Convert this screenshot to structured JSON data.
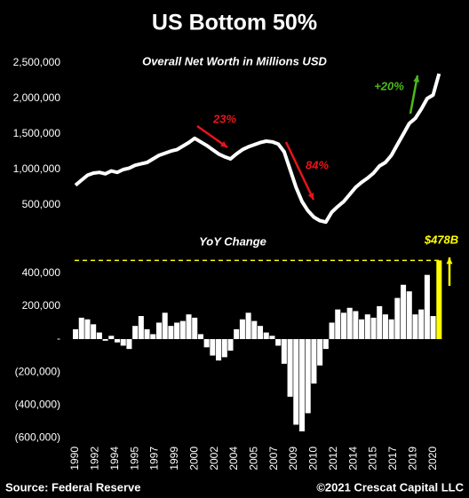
{
  "title": "US Bottom 50%",
  "source": "Source: Federal Reserve",
  "copyright": "©2021 Crescat Capital LLC",
  "chart_data": [
    {
      "type": "line",
      "title": "Overall Net Worth in Millions USD",
      "color": "#ffffff",
      "x": [
        1990,
        1990.5,
        1991,
        1991.5,
        1992,
        1992.5,
        1993,
        1993.5,
        1994,
        1994.5,
        1995,
        1995.5,
        1996,
        1996.5,
        1997,
        1997.5,
        1998,
        1998.5,
        1999,
        1999.5,
        2000,
        2000.5,
        2001,
        2001.5,
        2002,
        2002.5,
        2003,
        2003.5,
        2004,
        2004.5,
        2005,
        2005.5,
        2006,
        2006.5,
        2007,
        2007.5,
        2008,
        2008.5,
        2009,
        2009.5,
        2010,
        2010.5,
        2011,
        2011.5,
        2012,
        2012.5,
        2013,
        2013.5,
        2014,
        2014.5,
        2015,
        2015.5,
        2016,
        2016.5,
        2017,
        2017.5,
        2018,
        2018.5,
        2019,
        2019.5,
        2020,
        2020.5
      ],
      "values": [
        780000,
        850000,
        920000,
        950000,
        960000,
        940000,
        980000,
        960000,
        1000000,
        1020000,
        1060000,
        1080000,
        1100000,
        1150000,
        1200000,
        1230000,
        1260000,
        1280000,
        1330000,
        1380000,
        1440000,
        1390000,
        1340000,
        1280000,
        1220000,
        1180000,
        1150000,
        1220000,
        1280000,
        1320000,
        1350000,
        1380000,
        1400000,
        1390000,
        1360000,
        1250000,
        1000000,
        750000,
        550000,
        420000,
        330000,
        280000,
        260000,
        400000,
        480000,
        550000,
        650000,
        750000,
        820000,
        880000,
        950000,
        1050000,
        1100000,
        1200000,
        1350000,
        1500000,
        1650000,
        1720000,
        1850000,
        2000000,
        2050000,
        2350000
      ],
      "xlim": [
        1989.55,
        2020.7
      ],
      "ylim": [
        200000,
        2600000
      ],
      "yticks": [
        {
          "value": 500000,
          "label": "500,000"
        },
        {
          "value": 1000000,
          "label": "1,000,000"
        },
        {
          "value": 1500000,
          "label": "1,500,000"
        },
        {
          "value": 2000000,
          "label": "2,000,000"
        },
        {
          "value": 2500000,
          "label": "2,500,000"
        }
      ],
      "annotations": [
        {
          "text": "23%",
          "color": "#e8141b"
        },
        {
          "text": "84%",
          "color": "#e8141b"
        },
        {
          "text": "+20%",
          "color": "#4cbb17"
        }
      ]
    },
    {
      "type": "bar",
      "title": "YoY Change",
      "color": "#ffffff",
      "highlight_color": "#ffff00",
      "x": [
        1990,
        1990.5,
        1991,
        1991.5,
        1992,
        1992.5,
        1993,
        1993.5,
        1994,
        1994.5,
        1995,
        1995.5,
        1996,
        1996.5,
        1997,
        1997.5,
        1998,
        1998.5,
        1999,
        1999.5,
        2000,
        2000.5,
        2001,
        2001.5,
        2002,
        2002.5,
        2003,
        2003.5,
        2004,
        2004.5,
        2005,
        2005.5,
        2006,
        2006.5,
        2007,
        2007.5,
        2008,
        2008.5,
        2009,
        2009.5,
        2010,
        2010.5,
        2011,
        2011.5,
        2012,
        2012.5,
        2013,
        2013.5,
        2014,
        2014.5,
        2015,
        2015.5,
        2016,
        2016.5,
        2017,
        2017.5,
        2018,
        2018.5,
        2019,
        2019.5,
        2020,
        2020.5
      ],
      "values": [
        60000,
        130000,
        120000,
        90000,
        40000,
        -10000,
        20000,
        -20000,
        -40000,
        -60000,
        80000,
        140000,
        60000,
        30000,
        100000,
        160000,
        80000,
        100000,
        110000,
        150000,
        130000,
        30000,
        -50000,
        -100000,
        -130000,
        -110000,
        -70000,
        60000,
        120000,
        160000,
        110000,
        80000,
        40000,
        20000,
        -40000,
        -150000,
        -350000,
        -520000,
        -560000,
        -450000,
        -270000,
        -160000,
        -60000,
        100000,
        180000,
        160000,
        190000,
        170000,
        120000,
        150000,
        130000,
        200000,
        150000,
        120000,
        250000,
        330000,
        290000,
        150000,
        180000,
        390000,
        140000,
        478000
      ],
      "xlim": [
        1989.55,
        2020.7
      ],
      "ylim": [
        -620000,
        620000
      ],
      "yticks": [
        {
          "value": -600000,
          "label": "(600,000)"
        },
        {
          "value": -400000,
          "label": "(400,000)"
        },
        {
          "value": -200000,
          "label": "(200,000)"
        },
        {
          "value": 0,
          "label": "-"
        },
        {
          "value": 200000,
          "label": "200,000"
        },
        {
          "value": 400000,
          "label": "400,000"
        }
      ],
      "xticks": [
        {
          "value": 1990,
          "label": "1990"
        },
        {
          "value": 1991.67,
          "label": "1992"
        },
        {
          "value": 1993.33,
          "label": "1994"
        },
        {
          "value": 1995,
          "label": "1995"
        },
        {
          "value": 1996.67,
          "label": "1997"
        },
        {
          "value": 1998.33,
          "label": "1999"
        },
        {
          "value": 2000,
          "label": "2000"
        },
        {
          "value": 2001.67,
          "label": "2002"
        },
        {
          "value": 2003.33,
          "label": "2004"
        },
        {
          "value": 2005,
          "label": "2005"
        },
        {
          "value": 2006.67,
          "label": "2007"
        },
        {
          "value": 2008.33,
          "label": "2009"
        },
        {
          "value": 2010,
          "label": "2010"
        },
        {
          "value": 2011.67,
          "label": "2012"
        },
        {
          "value": 2013.33,
          "label": "2014"
        },
        {
          "value": 2015,
          "label": "2015"
        },
        {
          "value": 2016.67,
          "label": "2017"
        },
        {
          "value": 2018.33,
          "label": "2019"
        },
        {
          "value": 2020,
          "label": "2020"
        }
      ],
      "annotations": [
        {
          "text": "$478B",
          "color": "#ffff00"
        }
      ]
    }
  ]
}
